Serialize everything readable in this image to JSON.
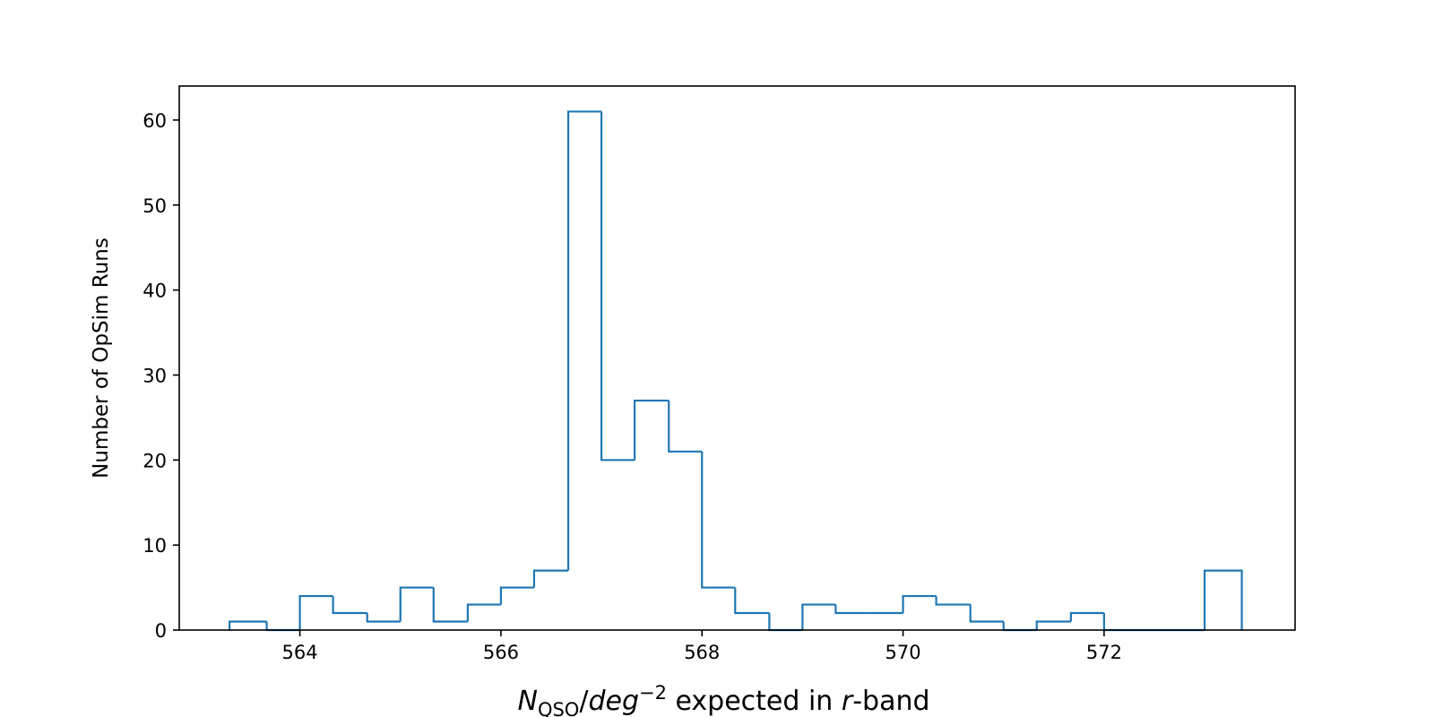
{
  "chart_data": {
    "type": "bar",
    "subtype": "step-histogram",
    "title": "",
    "xlabel": {
      "symbol": "N",
      "subscript": "QSO",
      "slash": "/",
      "unit": "deg",
      "superscript": "−2",
      "middle": " expected in ",
      "band": "r",
      "suffix": "-band"
    },
    "ylabel": "Number of OpSim Runs",
    "xlim": [
      562.8,
      573.9
    ],
    "ylim": [
      0,
      64
    ],
    "xticks": [
      564,
      566,
      568,
      570,
      572
    ],
    "yticks": [
      0,
      10,
      20,
      30,
      40,
      50,
      60
    ],
    "grid": false,
    "line_color": "#1f77b4",
    "bin_edges": [
      563.3,
      563.67,
      564.0,
      564.33,
      564.67,
      565.0,
      565.33,
      565.67,
      566.0,
      566.33,
      566.67,
      567.0,
      567.33,
      567.67,
      568.0,
      568.33,
      568.67,
      569.0,
      569.33,
      569.67,
      570.0,
      570.33,
      570.67,
      571.0,
      571.33,
      571.67,
      572.0,
      572.33,
      572.67,
      573.0,
      573.37
    ],
    "counts": [
      1,
      0,
      4,
      2,
      1,
      5,
      1,
      3,
      5,
      7,
      61,
      20,
      27,
      21,
      5,
      2,
      0,
      3,
      2,
      2,
      4,
      3,
      1,
      0,
      1,
      2,
      0,
      0,
      0,
      7
    ]
  }
}
